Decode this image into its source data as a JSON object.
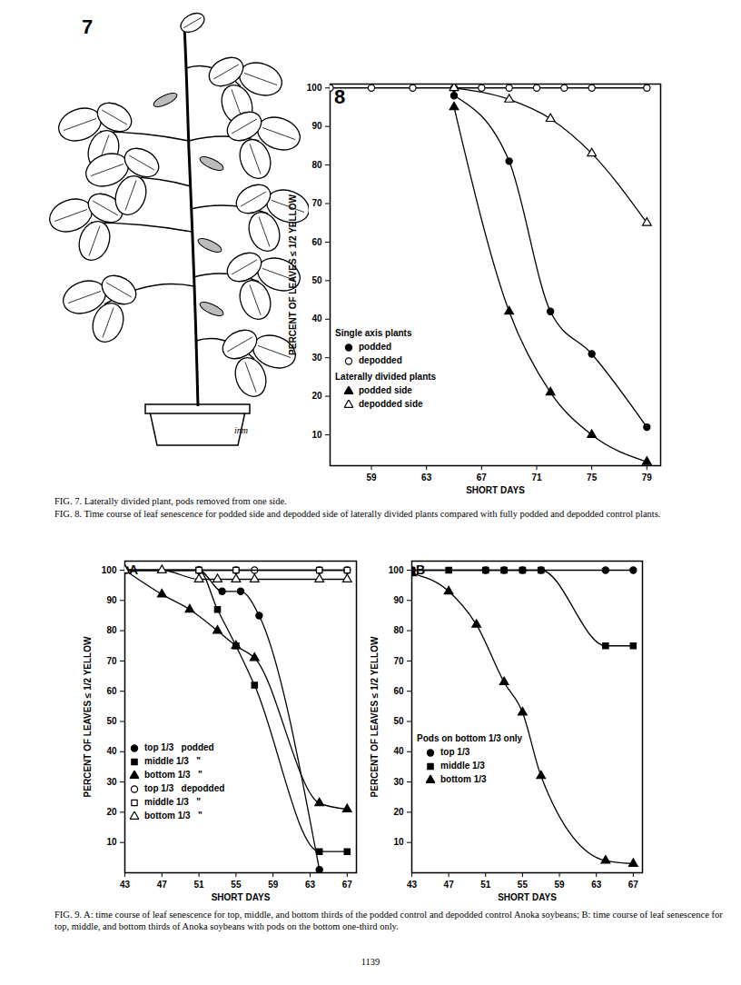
{
  "chart_data": [
    {
      "type": "line",
      "title": "8",
      "x_label": "SHORT DAYS",
      "y_label": "PERCENT OF LEAVES ≤ 1/2 YELLOW",
      "xlim": [
        56,
        80
      ],
      "xticks": [
        59,
        63,
        67,
        71,
        75,
        79
      ],
      "ylim": [
        2,
        101
      ],
      "yticks": [
        10,
        20,
        30,
        40,
        50,
        60,
        70,
        80,
        90,
        100
      ],
      "grid": false,
      "legend": "bottom-left",
      "series": [
        {
          "name": "podded",
          "group": "Single axis plants",
          "color": "#000000",
          "marker": "circle-filled",
          "line_style": "solid",
          "x": [
            65,
            69,
            72,
            75,
            79
          ],
          "values": [
            98,
            81,
            42,
            31,
            12
          ]
        },
        {
          "name": "depodded",
          "group": "Single axis plants",
          "color": "#000000",
          "marker": "circle-open",
          "line_style": "solid",
          "x": [
            56,
            59,
            62,
            65,
            67,
            69,
            71,
            73,
            75,
            79
          ],
          "values": [
            100,
            100,
            100,
            100,
            100,
            100,
            100,
            100,
            100,
            100
          ]
        },
        {
          "name": "podded side",
          "group": "Laterally divided plants",
          "color": "#000000",
          "marker": "triangle-filled",
          "line_style": "solid",
          "x": [
            65,
            69,
            72,
            75,
            79
          ],
          "values": [
            95,
            42,
            21,
            10,
            3
          ]
        },
        {
          "name": "depodded side",
          "group": "Laterally divided plants",
          "color": "#000000",
          "marker": "triangle-open",
          "line_style": "solid",
          "x": [
            65,
            69,
            72,
            75,
            79
          ],
          "values": [
            100,
            97,
            92,
            83,
            65
          ]
        }
      ]
    },
    {
      "type": "line",
      "title": "A",
      "x_label": "SHORT DAYS",
      "y_label": "PERCENT OF LEAVES ≤ 1/2 YELLOW",
      "xlim": [
        43,
        68
      ],
      "xticks": [
        43,
        47,
        51,
        55,
        59,
        63,
        67
      ],
      "ylim": [
        0,
        103
      ],
      "yticks": [
        10,
        20,
        30,
        40,
        50,
        60,
        70,
        80,
        90,
        100
      ],
      "grid": false,
      "legend": "bottom-left",
      "series": [
        {
          "name": "top 1/3   podded",
          "color": "#000000",
          "marker": "circle-filled",
          "line_style": "solid",
          "x": [
            43,
            51,
            53.5,
            55.5,
            57.5,
            64
          ],
          "values": [
            100,
            100,
            93,
            93,
            85,
            1
          ]
        },
        {
          "name": "middle 1/3   \"",
          "color": "#000000",
          "marker": "square-filled",
          "line_style": "solid",
          "x": [
            43,
            51,
            53,
            55,
            57,
            64,
            67
          ],
          "values": [
            100,
            100,
            87,
            75,
            62,
            7,
            7
          ]
        },
        {
          "name": "bottom 1/3   \"",
          "color": "#000000",
          "marker": "triangle-filled",
          "line_style": "solid",
          "x": [
            43,
            47,
            50,
            53,
            55,
            57,
            64,
            67
          ],
          "values": [
            100,
            92,
            87,
            80,
            75,
            71,
            23,
            21
          ]
        },
        {
          "name": "top 1/3   depodded",
          "color": "#000000",
          "marker": "circle-open",
          "line_style": "solid",
          "x": [
            43,
            51,
            55,
            57,
            64,
            67
          ],
          "values": [
            100,
            100,
            100,
            100,
            100,
            100
          ]
        },
        {
          "name": "middle 1/3   \"",
          "color": "#000000",
          "marker": "square-open",
          "line_style": "solid",
          "x": [
            43,
            51,
            55,
            64,
            67
          ],
          "values": [
            100,
            100,
            100,
            100,
            100
          ]
        },
        {
          "name": "bottom 1/3   \"",
          "color": "#000000",
          "marker": "triangle-open",
          "line_style": "solid",
          "x": [
            43,
            47,
            51,
            53,
            55,
            57,
            64,
            67
          ],
          "values": [
            100,
            100,
            97,
            97,
            97,
            97,
            97,
            97
          ]
        }
      ]
    },
    {
      "type": "line",
      "title": "B",
      "x_label": "SHORT DAYS",
      "y_label": "PERCENT OF LEAVES ≤ 1/2 YELLOW",
      "xlim": [
        43,
        68
      ],
      "xticks": [
        43,
        47,
        51,
        55,
        59,
        63,
        67
      ],
      "ylim": [
        0,
        103
      ],
      "yticks": [
        10,
        20,
        30,
        40,
        50,
        60,
        70,
        80,
        90,
        100
      ],
      "grid": false,
      "legend": "bottom-left",
      "series": [
        {
          "name": "top 1/3",
          "group": "Pods on bottom 1/3 only",
          "color": "#000000",
          "marker": "circle-filled",
          "line_style": "solid",
          "x": [
            43,
            51,
            53,
            55,
            57,
            64,
            67
          ],
          "values": [
            100,
            100,
            100,
            100,
            100,
            100,
            100
          ]
        },
        {
          "name": "middle 1/3",
          "group": "Pods on bottom 1/3 only",
          "color": "#000000",
          "marker": "square-filled",
          "line_style": "solid",
          "x": [
            43,
            47,
            51,
            53,
            55,
            57,
            64,
            67
          ],
          "values": [
            100,
            100,
            100,
            100,
            100,
            100,
            75,
            75
          ]
        },
        {
          "name": "bottom 1/3",
          "group": "Pods on bottom 1/3 only",
          "color": "#000000",
          "marker": "triangle-filled",
          "line_style": "solid",
          "x": [
            43,
            47,
            50,
            53,
            55,
            57,
            64,
            67
          ],
          "values": [
            99,
            93,
            82,
            63,
            53,
            32,
            4,
            3
          ]
        }
      ]
    }
  ],
  "figure_7": {
    "label": "7",
    "signature": "inm"
  },
  "captions": [
    "FIG. 7. Laterally divided plant, pods removed from one side.",
    "FIG. 8. Time course of leaf senescence for podded side and depodded side of laterally divided plants compared with fully podded and depodded control plants.",
    "FIG. 9. A: time course of leaf senescence for top, middle, and bottom thirds of the podded control and depodded control Anoka soybeans; B: time course of leaf senescence for top, middle, and bottom thirds of Anoka soybeans with pods on the bottom one-third only."
  ],
  "page_number": "1139"
}
